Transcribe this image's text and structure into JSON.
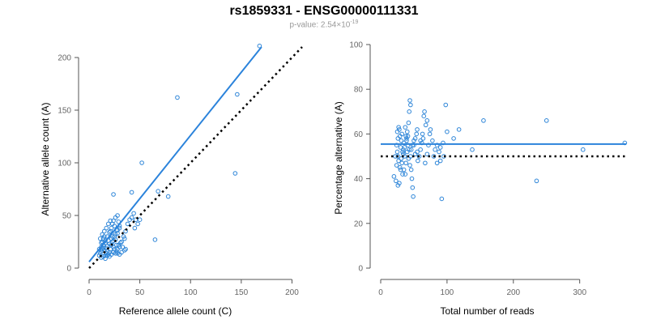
{
  "header": {
    "title": "rs1859331 - ENSG00000111331",
    "pvalue_prefix": "p-value: 2.54×10",
    "pvalue_exponent": "-19"
  },
  "colors": {
    "points": "#2f86d8",
    "fit": "#2b83db",
    "reference": "#000000",
    "axis": "#555555",
    "tick_text": "#666666"
  },
  "chart_data": [
    {
      "type": "scatter",
      "title": "",
      "xlabel": "Reference allele count (C)",
      "ylabel": "Alternative allele count (A)",
      "xlim": [
        0,
        210
      ],
      "ylim": [
        0,
        210
      ],
      "xticks": [
        0,
        50,
        100,
        150,
        200
      ],
      "yticks": [
        0,
        50,
        100,
        150,
        200
      ],
      "grid": false,
      "points": [
        [
          10,
          12
        ],
        [
          11,
          14
        ],
        [
          12,
          16
        ],
        [
          13,
          18
        ],
        [
          12,
          20
        ],
        [
          14,
          22
        ],
        [
          15,
          17
        ],
        [
          16,
          24
        ],
        [
          17,
          19
        ],
        [
          18,
          21
        ],
        [
          19,
          26
        ],
        [
          20,
          23
        ],
        [
          21,
          18
        ],
        [
          22,
          28
        ],
        [
          23,
          25
        ],
        [
          24,
          20
        ],
        [
          25,
          30
        ],
        [
          26,
          27
        ],
        [
          27,
          22
        ],
        [
          28,
          33
        ],
        [
          13,
          25
        ],
        [
          14,
          28
        ],
        [
          15,
          30
        ],
        [
          16,
          12
        ],
        [
          17,
          14
        ],
        [
          18,
          16
        ],
        [
          19,
          13
        ],
        [
          20,
          15
        ],
        [
          21,
          35
        ],
        [
          22,
          38
        ],
        [
          23,
          42
        ],
        [
          24,
          45
        ],
        [
          25,
          40
        ],
        [
          26,
          48
        ],
        [
          27,
          36
        ],
        [
          28,
          50
        ],
        [
          29,
          44
        ],
        [
          30,
          38
        ],
        [
          12,
          10
        ],
        [
          14,
          11
        ],
        [
          16,
          9
        ],
        [
          18,
          12
        ],
        [
          20,
          11
        ],
        [
          22,
          13
        ],
        [
          24,
          15
        ],
        [
          26,
          14
        ],
        [
          28,
          18
        ],
        [
          30,
          20
        ],
        [
          32,
          25
        ],
        [
          34,
          30
        ],
        [
          35,
          28
        ],
        [
          36,
          35
        ],
        [
          38,
          42
        ],
        [
          40,
          46
        ],
        [
          42,
          48
        ],
        [
          44,
          52
        ],
        [
          45,
          38
        ],
        [
          11,
          28
        ],
        [
          13,
          32
        ],
        [
          15,
          35
        ],
        [
          17,
          38
        ],
        [
          19,
          42
        ],
        [
          21,
          45
        ],
        [
          23,
          30
        ],
        [
          25,
          18
        ],
        [
          27,
          16
        ],
        [
          29,
          22
        ],
        [
          31,
          24
        ],
        [
          33,
          20
        ],
        [
          35,
          17
        ],
        [
          10,
          18
        ],
        [
          12,
          24
        ],
        [
          14,
          19
        ],
        [
          16,
          26
        ],
        [
          18,
          30
        ],
        [
          20,
          34
        ],
        [
          22,
          22
        ],
        [
          24,
          26
        ],
        [
          26,
          32
        ],
        [
          28,
          36
        ],
        [
          30,
          40
        ],
        [
          46,
          46
        ],
        [
          48,
          42
        ],
        [
          50,
          46
        ],
        [
          24,
          70
        ],
        [
          52,
          100
        ],
        [
          65,
          27
        ],
        [
          68,
          73
        ],
        [
          78,
          68
        ],
        [
          87,
          162
        ],
        [
          144,
          90
        ],
        [
          146,
          165
        ],
        [
          168,
          211
        ],
        [
          42,
          72
        ],
        [
          32,
          15
        ],
        [
          28,
          14
        ],
        [
          30,
          13
        ],
        [
          36,
          18
        ]
      ],
      "fit_line": {
        "x": [
          0,
          170
        ],
        "y": [
          6,
          210
        ]
      },
      "reference_line": {
        "x": [
          0,
          210
        ],
        "y": [
          0,
          210
        ]
      }
    },
    {
      "type": "scatter",
      "title": "",
      "xlabel": "Total number of reads",
      "ylabel": "Percentage alternative (A)",
      "xlim": [
        0,
        370
      ],
      "ylim": [
        0,
        100
      ],
      "xticks": [
        0,
        100,
        200,
        300
      ],
      "yticks": [
        0,
        20,
        40,
        60,
        80,
        100
      ],
      "grid": false,
      "points": [
        [
          22,
          50
        ],
        [
          24,
          55
        ],
        [
          25,
          52
        ],
        [
          26,
          58
        ],
        [
          27,
          48
        ],
        [
          28,
          62
        ],
        [
          29,
          45
        ],
        [
          30,
          54
        ],
        [
          31,
          57
        ],
        [
          32,
          60
        ],
        [
          33,
          42
        ],
        [
          34,
          53
        ],
        [
          35,
          56
        ],
        [
          36,
          50
        ],
        [
          37,
          63
        ],
        [
          38,
          47
        ],
        [
          39,
          58
        ],
        [
          40,
          52
        ],
        [
          41,
          55
        ],
        [
          42,
          65
        ],
        [
          43,
          70
        ],
        [
          44,
          75
        ],
        [
          45,
          73
        ],
        [
          46,
          44
        ],
        [
          47,
          40
        ],
        [
          48,
          36
        ],
        [
          49,
          32
        ],
        [
          50,
          55
        ],
        [
          52,
          58
        ],
        [
          54,
          60
        ],
        [
          55,
          62
        ],
        [
          56,
          48
        ],
        [
          58,
          50
        ],
        [
          60,
          53
        ],
        [
          62,
          56
        ],
        [
          64,
          58
        ],
        [
          65,
          68
        ],
        [
          66,
          70
        ],
        [
          68,
          64
        ],
        [
          70,
          66
        ],
        [
          72,
          55
        ],
        [
          74,
          60
        ],
        [
          75,
          62
        ],
        [
          78,
          57
        ],
        [
          80,
          50
        ],
        [
          82,
          53
        ],
        [
          85,
          55
        ],
        [
          88,
          52
        ],
        [
          90,
          48
        ],
        [
          92,
          31
        ],
        [
          94,
          56
        ],
        [
          95,
          50
        ],
        [
          98,
          73
        ],
        [
          100,
          61
        ],
        [
          20,
          41
        ],
        [
          23,
          39
        ],
        [
          26,
          37
        ],
        [
          28,
          38
        ],
        [
          30,
          44
        ],
        [
          32,
          47
        ],
        [
          34,
          51
        ],
        [
          36,
          54
        ],
        [
          38,
          59
        ],
        [
          40,
          61
        ],
        [
          42,
          49
        ],
        [
          44,
          46
        ],
        [
          46,
          53
        ],
        [
          48,
          55
        ],
        [
          50,
          57
        ],
        [
          52,
          51
        ],
        [
          25,
          61
        ],
        [
          27,
          63
        ],
        [
          29,
          59
        ],
        [
          31,
          49
        ],
        [
          33,
          52
        ],
        [
          35,
          44
        ],
        [
          37,
          42
        ],
        [
          39,
          57
        ],
        [
          41,
          59
        ],
        [
          43,
          53
        ],
        [
          24,
          46
        ],
        [
          26,
          50
        ],
        [
          45,
          50
        ],
        [
          55,
          52
        ],
        [
          60,
          57
        ],
        [
          63,
          60
        ],
        [
          67,
          47
        ],
        [
          70,
          51
        ],
        [
          110,
          58
        ],
        [
          118,
          62
        ],
        [
          138,
          53
        ],
        [
          155,
          66
        ],
        [
          235,
          39
        ],
        [
          250,
          66
        ],
        [
          305,
          53
        ],
        [
          368,
          56
        ],
        [
          85,
          47
        ],
        [
          90,
          54
        ]
      ],
      "fit_line": {
        "x": [
          0,
          370
        ],
        "y": [
          55.5,
          55.5
        ]
      },
      "reference_line": {
        "x": [
          0,
          370
        ],
        "y": [
          50,
          50
        ]
      }
    }
  ]
}
